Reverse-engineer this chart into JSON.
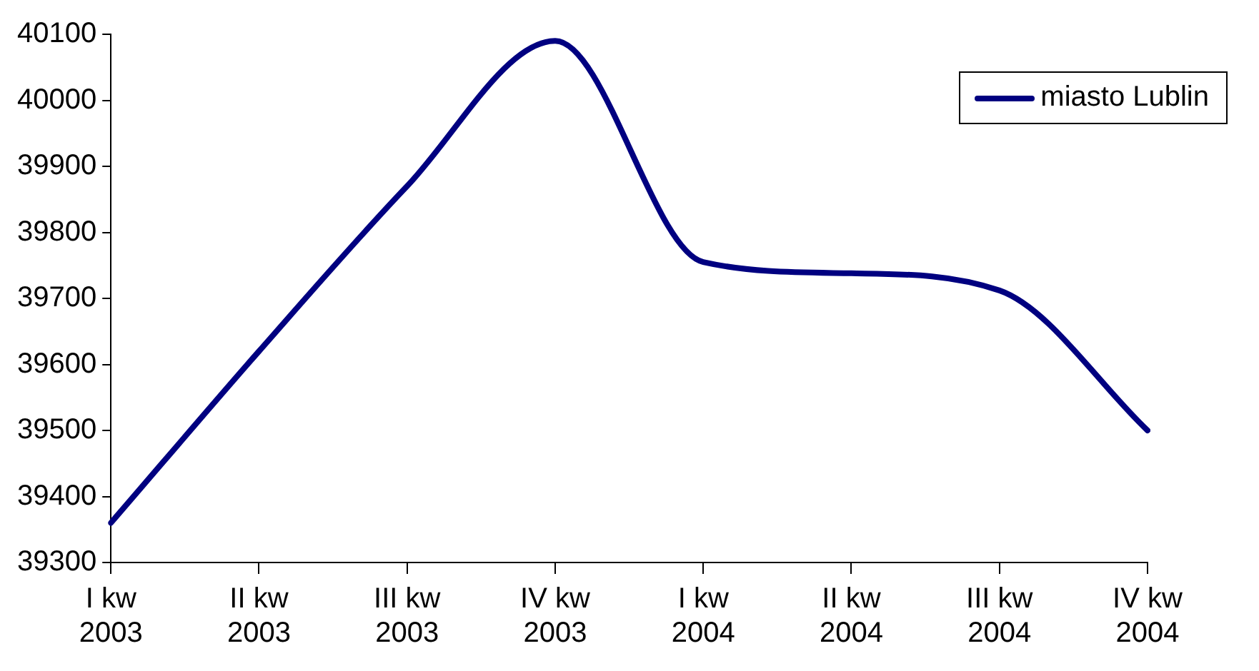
{
  "chart_data": {
    "type": "line",
    "categories": [
      "I kw 2003",
      "II kw 2003",
      "III kw 2003",
      "IV kw 2003",
      "I kw 2004",
      "II kw 2004",
      "III kw 2004",
      "IV kw 2004"
    ],
    "series": [
      {
        "name": "miasto Lublin",
        "color": "#000080",
        "values": [
          39360,
          39620,
          39870,
          40090,
          39755,
          39738,
          39712,
          39500
        ]
      }
    ],
    "ylim": [
      39300,
      40100
    ],
    "yticks": [
      39300,
      39400,
      39500,
      39600,
      39700,
      39800,
      39900,
      40000,
      40100
    ],
    "grid": false,
    "legend": "top right",
    "marker": "none",
    "line_style": "solid"
  }
}
